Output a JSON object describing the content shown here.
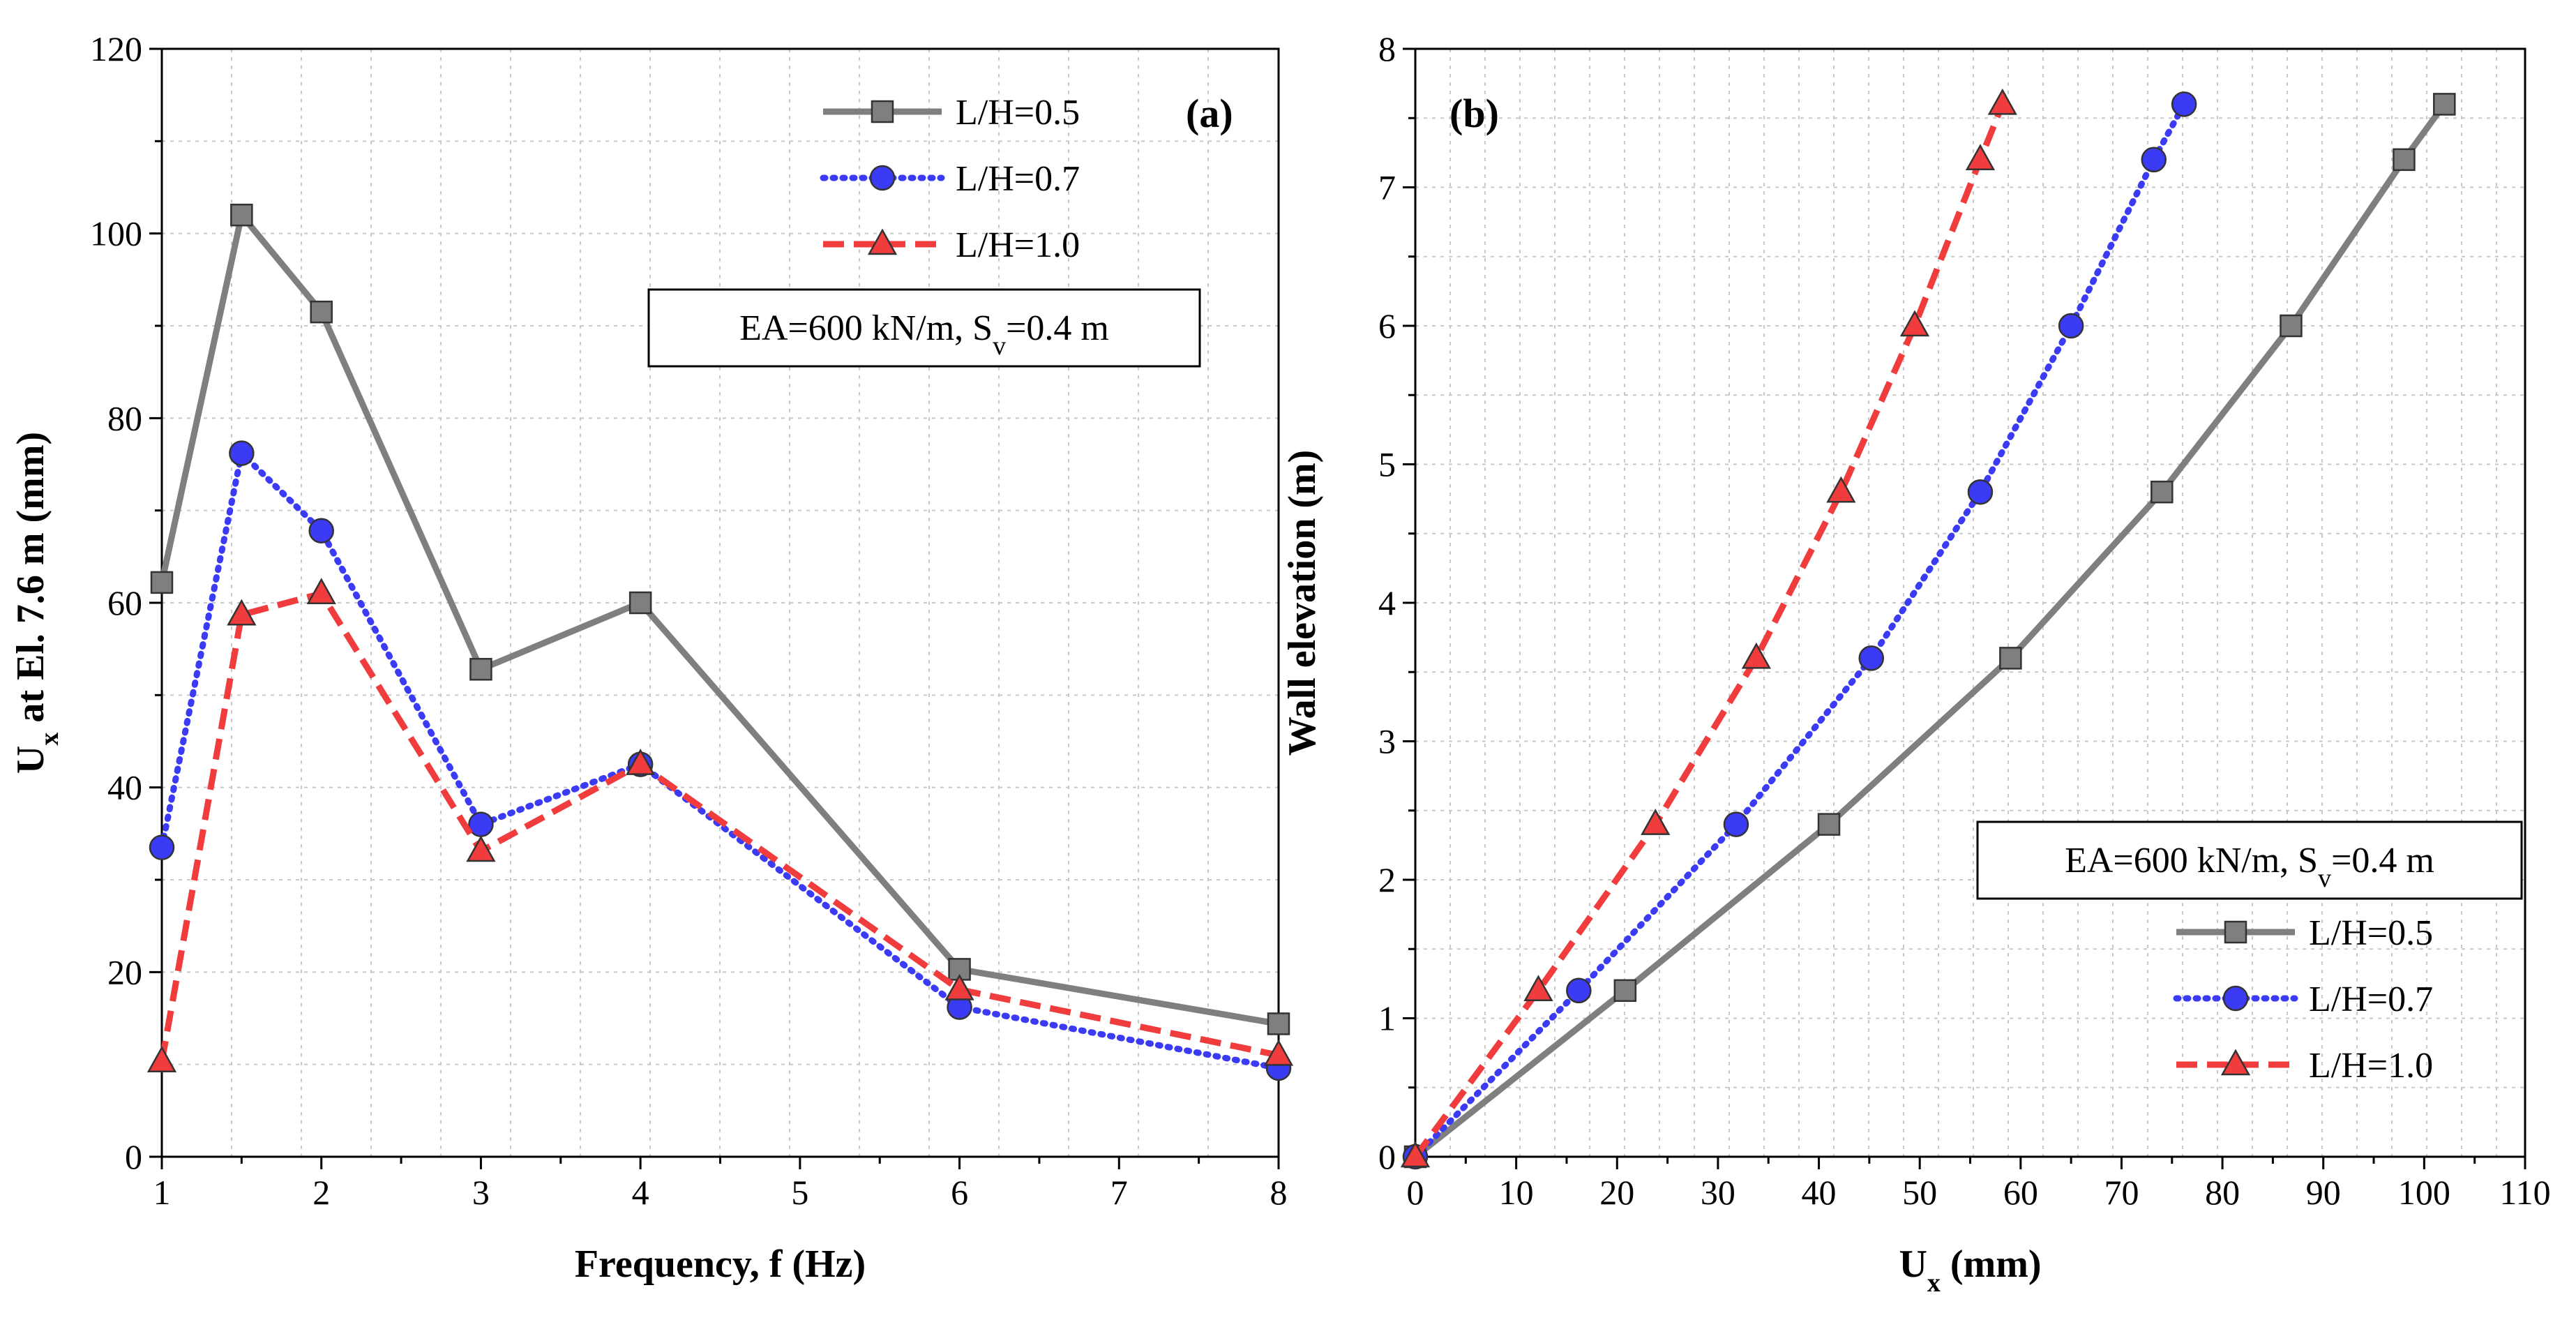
{
  "chart_data": [
    {
      "panel": "(a)",
      "type": "line",
      "xlabel": "Frequency, f (Hz)",
      "ylabel": {
        "base": "U",
        "sub": "x",
        "rest": " at El. 7.6 m (mm)"
      },
      "xlim": [
        1,
        8
      ],
      "ylim": [
        0,
        120
      ],
      "xticks": [
        1,
        2,
        3,
        4,
        5,
        6,
        7,
        8
      ],
      "yticks": [
        0,
        20,
        40,
        60,
        80,
        100,
        120
      ],
      "grid": true,
      "annotation": {
        "prefix": "EA=600 kN/m, S",
        "sub": "v",
        "suffix": "=0.4 m"
      },
      "legend_position": "top-right",
      "series": [
        {
          "name": "L/H=0.5",
          "color": "#7f7f7f",
          "dash": "solid",
          "marker": "square",
          "x": [
            1,
            1.5,
            2,
            3,
            4,
            6,
            8
          ],
          "y": [
            62.2,
            102,
            91.5,
            52.8,
            60,
            20.3,
            14.4
          ]
        },
        {
          "name": "L/H=0.7",
          "color": "#3b3bf5",
          "dash": "dotted",
          "marker": "circle",
          "x": [
            1,
            1.5,
            2,
            3,
            4,
            6,
            8
          ],
          "y": [
            33.5,
            76.2,
            67.8,
            36,
            42.5,
            16.2,
            9.6
          ]
        },
        {
          "name": "L/H=1.0",
          "color": "#f03c3c",
          "dash": "dashed",
          "marker": "triangle",
          "x": [
            1,
            1.5,
            2,
            3,
            4,
            6,
            8
          ],
          "y": [
            10.3,
            58.7,
            61,
            33.1,
            42.5,
            18.1,
            11
          ]
        }
      ]
    },
    {
      "panel": "(b)",
      "type": "line",
      "xlabel": {
        "base": "U",
        "sub": "x",
        "rest": " (mm)"
      },
      "ylabel": "Wall elevation (m)",
      "xlim": [
        0,
        110
      ],
      "ylim": [
        0,
        8
      ],
      "xticks": [
        0,
        10,
        20,
        30,
        40,
        50,
        60,
        70,
        80,
        90,
        100,
        110
      ],
      "yticks": [
        0,
        1,
        2,
        3,
        4,
        5,
        6,
        7,
        8
      ],
      "grid": true,
      "annotation": {
        "prefix": "EA=600 kN/m, S",
        "sub": "v",
        "suffix": "=0.4 m"
      },
      "legend_position": "bottom-right",
      "series": [
        {
          "name": "L/H=0.5",
          "color": "#7f7f7f",
          "dash": "solid",
          "marker": "square",
          "x": [
            0,
            20.8,
            41,
            59,
            74,
            86.8,
            98,
            102
          ],
          "y": [
            0,
            1.2,
            2.4,
            3.6,
            4.8,
            6,
            7.2,
            7.6
          ]
        },
        {
          "name": "L/H=0.7",
          "color": "#3b3bf5",
          "dash": "dotted",
          "marker": "circle",
          "x": [
            0,
            16.2,
            31.8,
            45.2,
            56,
            65,
            73.2,
            76.2
          ],
          "y": [
            0,
            1.2,
            2.4,
            3.6,
            4.8,
            6,
            7.2,
            7.6
          ]
        },
        {
          "name": "L/H=1.0",
          "color": "#f03c3c",
          "dash": "dashed",
          "marker": "triangle",
          "x": [
            0,
            12.2,
            23.8,
            33.8,
            42.2,
            49.5,
            56,
            58.2
          ],
          "y": [
            0,
            1.2,
            2.4,
            3.6,
            4.8,
            6,
            7.2,
            7.6
          ]
        }
      ]
    }
  ]
}
